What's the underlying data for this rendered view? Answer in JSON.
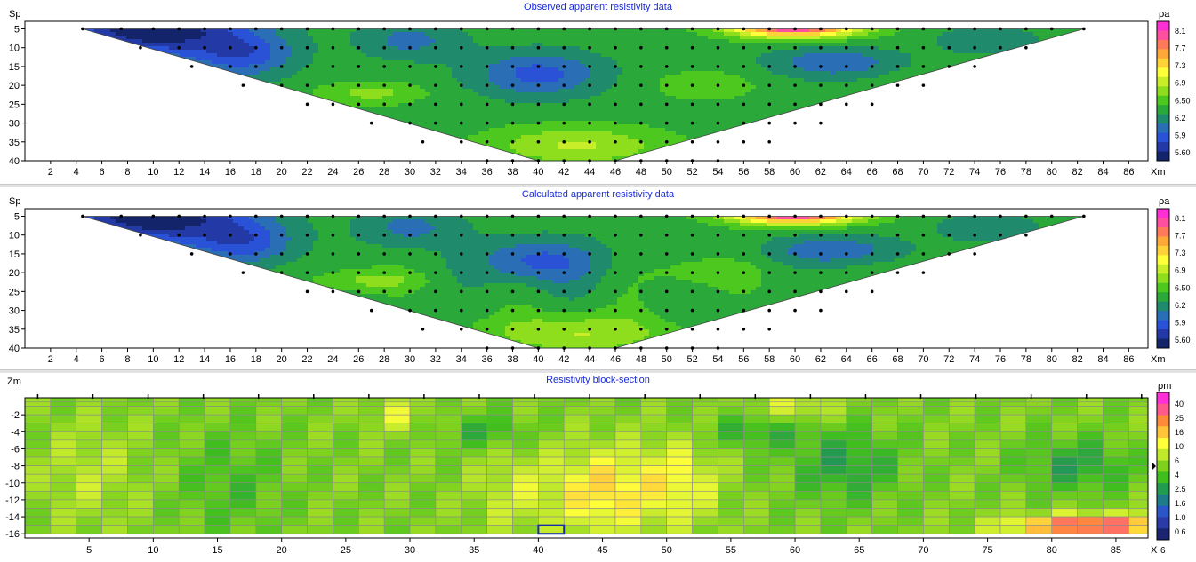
{
  "colors": {
    "title": "#1a2bd8",
    "panel_bg": "#ffffff",
    "frame": "#000000",
    "grid": "#808080"
  },
  "chart_data": [
    {
      "type": "heatmap",
      "title": "Observed apparent resistivity data",
      "ylabel": "Sp",
      "xlabel": "Xm",
      "x_ticks": [
        "2",
        "4",
        "6",
        "8",
        "10",
        "12",
        "14",
        "16",
        "18",
        "20",
        "22",
        "24",
        "26",
        "28",
        "30",
        "32",
        "34",
        "36",
        "38",
        "40",
        "42",
        "44",
        "46",
        "48",
        "50",
        "52",
        "54",
        "56",
        "58",
        "60",
        "62",
        "64",
        "66",
        "68",
        "70",
        "72",
        "74",
        "76",
        "78",
        "80",
        "82",
        "84",
        "86"
      ],
      "y_ticks": [
        "5",
        "10",
        "15",
        "20",
        "25",
        "30",
        "35",
        "40"
      ],
      "xlim": [
        0,
        87.5
      ],
      "ylim": [
        3,
        40
      ],
      "colorbar_title": "ρa",
      "colorbar_labels": [
        "8.1",
        "7.7",
        "7.3",
        "6.9",
        "6.50",
        "6.2",
        "5.9",
        "5.60"
      ],
      "colorbar_colors": [
        "#ff2fd6",
        "#ff4fa0",
        "#ff7a5a",
        "#ffa83a",
        "#ffd23a",
        "#ffff3a",
        "#c8ee2a",
        "#8ede1e",
        "#4dc81e",
        "#2aa83a",
        "#1f8a6c",
        "#2a6fb6",
        "#2a52d6",
        "#233aa6",
        "#14246a"
      ],
      "measurement_points": [
        {
          "sp": 5,
          "x": [
            4.5,
            7.5,
            10,
            12,
            14,
            16,
            18,
            20,
            22,
            24,
            26,
            28,
            30,
            32,
            34,
            36,
            38,
            40,
            42,
            44,
            46,
            48,
            50,
            52,
            54,
            56,
            58,
            60,
            62,
            64,
            66,
            68,
            70,
            72,
            74,
            76,
            78,
            80,
            82.5
          ]
        },
        {
          "sp": 10,
          "x": [
            9,
            12,
            14,
            16,
            18,
            20,
            22,
            24,
            26,
            28,
            30,
            32,
            34,
            36,
            38,
            40,
            42,
            44,
            46,
            48,
            50,
            52,
            54,
            56,
            58,
            60,
            62,
            64,
            66,
            68,
            70,
            72,
            74,
            76,
            78
          ]
        },
        {
          "sp": 15,
          "x": [
            13,
            16,
            18,
            20,
            22,
            24,
            26,
            28,
            30,
            32,
            34,
            36,
            38,
            40,
            42,
            44,
            46,
            48,
            50,
            52,
            54,
            56,
            58,
            60,
            62,
            64,
            66,
            68,
            70,
            72,
            74
          ]
        },
        {
          "sp": 20,
          "x": [
            17,
            20,
            22,
            24,
            26,
            28,
            30,
            32,
            34,
            36,
            38,
            40,
            42,
            44,
            46,
            48,
            50,
            52,
            54,
            56,
            58,
            60,
            62,
            64,
            66,
            68,
            70
          ]
        },
        {
          "sp": 25,
          "x": [
            22,
            24,
            26,
            28,
            30,
            32,
            34,
            36,
            38,
            40,
            42,
            44,
            46,
            48,
            50,
            52,
            54,
            56,
            58,
            60,
            62,
            64,
            66
          ]
        },
        {
          "sp": 30,
          "x": [
            27,
            30,
            32,
            34,
            36,
            38,
            40,
            42,
            44,
            46,
            48,
            50,
            52,
            54,
            56,
            58,
            60,
            62
          ]
        },
        {
          "sp": 35,
          "x": [
            31,
            34,
            36,
            38,
            40,
            42,
            44,
            46,
            48,
            50,
            52,
            54,
            56,
            58
          ]
        },
        {
          "sp": 40,
          "x": [
            36,
            38,
            40,
            42,
            44,
            46,
            48,
            50,
            52,
            54
          ]
        }
      ]
    },
    {
      "type": "heatmap",
      "title": "Calculated apparent resistivity data",
      "ylabel": "Sp",
      "xlabel": "Xm",
      "x_ticks": [
        "2",
        "4",
        "6",
        "8",
        "10",
        "12",
        "14",
        "16",
        "18",
        "20",
        "22",
        "24",
        "26",
        "28",
        "30",
        "32",
        "34",
        "36",
        "38",
        "40",
        "42",
        "44",
        "46",
        "48",
        "50",
        "52",
        "54",
        "56",
        "58",
        "60",
        "62",
        "64",
        "66",
        "68",
        "70",
        "72",
        "74",
        "76",
        "78",
        "80",
        "82",
        "84",
        "86"
      ],
      "y_ticks": [
        "5",
        "10",
        "15",
        "20",
        "25",
        "30",
        "35",
        "40"
      ],
      "xlim": [
        0,
        87.5
      ],
      "ylim": [
        3,
        40
      ],
      "colorbar_title": "ρa",
      "colorbar_labels": [
        "8.1",
        "7.7",
        "7.3",
        "6.9",
        "6.50",
        "6.2",
        "5.9",
        "5.60"
      ]
    },
    {
      "type": "heatmap",
      "title": "Resistivity block-section",
      "ylabel": "Zm",
      "xlabel": "X",
      "x_ticks": [
        "5",
        "10",
        "15",
        "20",
        "25",
        "30",
        "35",
        "40",
        "45",
        "50",
        "55",
        "60",
        "65",
        "70",
        "75",
        "80",
        "85"
      ],
      "y_ticks": [
        "-2",
        "-4",
        "-6",
        "-8",
        "-10",
        "-12",
        "-14",
        "-16"
      ],
      "xlim": [
        0,
        87.5
      ],
      "ylim": [
        0,
        -16.5
      ],
      "corner_value": "6",
      "colorbar_title": "ρm",
      "colorbar_labels": [
        "40",
        "25",
        "16",
        "10",
        "6",
        "4",
        "2.5",
        "1.6",
        "1.0",
        "0.6"
      ],
      "colorbar_colors": [
        "#ff2fd6",
        "#ff5a8c",
        "#ff8a3a",
        "#ffc43a",
        "#ffff3a",
        "#bfe92a",
        "#7ed21e",
        "#3fbe1e",
        "#229a50",
        "#1f7a8a",
        "#2a56c8",
        "#2a3aa6",
        "#1a2470"
      ],
      "layer_depths": [
        0,
        -0.5,
        -1,
        -2,
        -3,
        -4,
        -5,
        -6,
        -7,
        -8,
        -9,
        -10,
        -11,
        -12,
        -13,
        -14,
        -15,
        -16
      ],
      "columns_x": [
        0,
        2,
        4,
        6,
        8,
        10,
        12,
        14,
        16,
        18,
        20,
        22,
        24,
        26,
        28,
        30,
        32,
        34,
        36,
        38,
        40,
        42,
        44,
        46,
        48,
        50,
        52,
        54,
        56,
        58,
        60,
        62,
        64,
        66,
        68,
        70,
        72,
        74,
        76,
        78,
        80,
        82,
        84,
        86,
        87.5
      ]
    }
  ]
}
